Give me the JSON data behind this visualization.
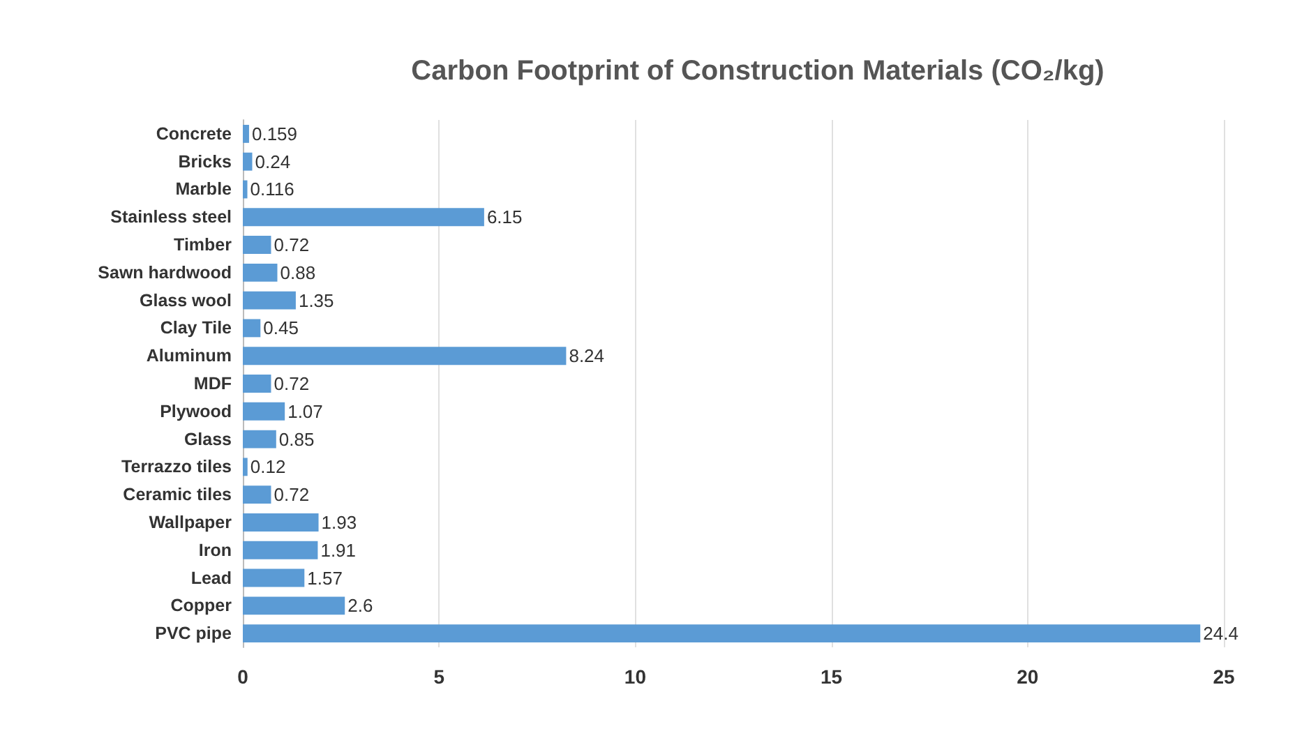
{
  "chart_data": {
    "type": "bar",
    "orientation": "horizontal",
    "title": "Carbon Footprint of Construction Materials (CO₂/kg)",
    "categories": [
      "Concrete",
      "Bricks",
      "Marble",
      "Stainless steel",
      "Timber",
      "Sawn hardwood",
      "Glass wool",
      "Clay Tile",
      "Aluminum",
      "MDF",
      "Plywood",
      "Glass",
      "Terrazzo tiles",
      "Ceramic tiles",
      "Wallpaper",
      "Iron",
      "Lead",
      "Copper",
      "PVC pipe"
    ],
    "values": [
      0.159,
      0.24,
      0.116,
      6.15,
      0.72,
      0.88,
      1.35,
      0.45,
      8.24,
      0.72,
      1.07,
      0.85,
      0.12,
      0.72,
      1.93,
      1.91,
      1.57,
      2.6,
      24.4
    ],
    "color": "#5b9bd5",
    "xlim": [
      0,
      25
    ],
    "xticks": [
      0,
      5,
      10,
      15,
      20,
      25
    ],
    "grid": "x",
    "data_labels": true
  }
}
